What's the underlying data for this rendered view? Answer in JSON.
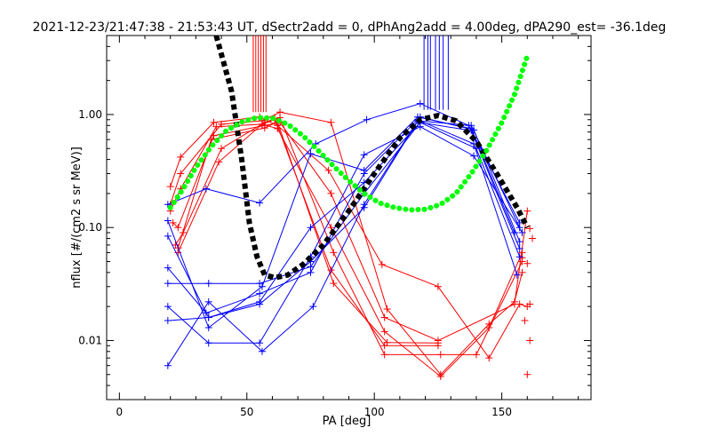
{
  "chart_data": {
    "type": "scatter",
    "title": "2021-12-23/21:47:38 - 21:53:43 UT, dSectr2add = 0, dPhAng2add = 4.00deg, dPA290_est= -36.1deg",
    "xlabel": "PA [deg]",
    "ylabel": "nflux [#/(cm2 s sr MeV)]",
    "xlim": [
      -5,
      185
    ],
    "ylim": [
      0.003,
      5
    ],
    "y_scale": "log",
    "grid": false,
    "x_ticks": [
      {
        "value": 0,
        "label": "0"
      },
      {
        "value": 50,
        "label": "50"
      },
      {
        "value": 100,
        "label": "100"
      },
      {
        "value": 150,
        "label": "150"
      }
    ],
    "y_ticks": [
      {
        "value": 0.01,
        "label": "0.01"
      },
      {
        "value": 0.1,
        "label": "0.10"
      },
      {
        "value": 1,
        "label": "1.00"
      }
    ],
    "colors": {
      "red": "#ff0000",
      "blue": "#0000ff",
      "black": "#000000",
      "green": "#00ff00"
    },
    "vlines": {
      "red": {
        "x": [
          52.5,
          53.5,
          54.5,
          55.5,
          56.5,
          57.5
        ],
        "y0": 1.05,
        "y1": 5
      },
      "blue": {
        "x": [
          119.5,
          121,
          122,
          124,
          125.5,
          127,
          129
        ],
        "y0": 1.1,
        "y1": 5
      }
    },
    "series": [
      {
        "color": "red",
        "lines": [
          [
            [
              20,
              0.23
            ],
            [
              24,
              0.42
            ],
            [
              37,
              0.85
            ],
            [
              55,
              0.95
            ],
            [
              62,
              0.8
            ],
            [
              82,
              0.32
            ],
            [
              103,
              0.047
            ],
            [
              125,
              0.03
            ],
            [
              145,
              0.007
            ],
            [
              157,
              0.021
            ],
            [
              160,
              0.02
            ]
          ],
          [
            [
              20,
              0.16
            ],
            [
              24,
              0.3
            ],
            [
              40,
              0.82
            ],
            [
              56,
              0.88
            ],
            [
              63,
              1.05
            ],
            [
              83,
              0.85
            ],
            [
              105,
              0.019
            ],
            [
              126,
              0.005
            ],
            [
              145,
              0.014
            ],
            [
              155,
              0.022
            ],
            [
              158,
              0.04
            ]
          ],
          [
            [
              20,
              0.14
            ],
            [
              24,
              0.22
            ],
            [
              38,
              0.78
            ],
            [
              56,
              0.82
            ],
            [
              62,
              0.75
            ],
            [
              83,
              0.1
            ],
            [
              104,
              0.012
            ],
            [
              126,
              0.0048
            ],
            [
              145,
              0.013
            ],
            [
              158,
              0.06
            ]
          ],
          [
            [
              21,
              0.11
            ],
            [
              23,
              0.1
            ],
            [
              37,
              0.65
            ],
            [
              57,
              0.8
            ],
            [
              63,
              0.85
            ],
            [
              83,
              0.2
            ],
            [
              104,
              0.016
            ],
            [
              125,
              0.01
            ],
            [
              155,
              0.021
            ],
            [
              160,
              0.14
            ]
          ],
          [
            [
              22,
              0.07
            ],
            [
              25,
              0.09
            ],
            [
              40,
              0.5
            ],
            [
              57,
              0.85
            ],
            [
              61,
              0.92
            ],
            [
              83,
              0.042
            ],
            [
              104,
              0.009
            ],
            [
              125,
              0.009
            ]
          ],
          [
            [
              23,
              0.066
            ],
            [
              36,
              0.6
            ],
            [
              57,
              0.76
            ],
            [
              62,
              0.86
            ],
            [
              84,
              0.032
            ],
            [
              105,
              0.0096
            ],
            [
              125,
              0.0095
            ]
          ],
          [
            [
              23,
              0.06
            ],
            [
              39,
              0.38
            ],
            [
              56,
              0.82
            ],
            [
              63,
              0.94
            ],
            [
              84,
              0.06
            ],
            [
              104,
              0.0075
            ],
            [
              126,
              0.0075
            ],
            [
              140,
              0.0075
            ],
            [
              158,
              0.05
            ]
          ]
        ]
      },
      {
        "color": "red",
        "markers_only": true,
        "points": [
          [
            158,
            0.054
          ],
          [
            160,
            0.048
          ],
          [
            161,
            0.098
          ],
          [
            161,
            0.021
          ],
          [
            159,
            0.015
          ],
          [
            161,
            0.01
          ],
          [
            160,
            0.005
          ],
          [
            162,
            0.08
          ]
        ]
      },
      {
        "color": "blue",
        "lines": [
          [
            [
              19,
              0.16
            ],
            [
              34,
              0.22
            ],
            [
              55,
              0.165
            ],
            [
              77,
              0.55
            ],
            [
              97,
              0.9
            ],
            [
              118,
              1.25
            ],
            [
              137,
              0.8
            ],
            [
              157,
              0.11
            ]
          ],
          [
            [
              19,
              0.115
            ],
            [
              35,
              0.013
            ],
            [
              56,
              0.03
            ],
            [
              75,
              0.45
            ],
            [
              96,
              0.32
            ],
            [
              117,
              0.95
            ],
            [
              138,
              0.75
            ],
            [
              155,
              0.09
            ]
          ],
          [
            [
              19,
              0.084
            ],
            [
              35,
              0.016
            ],
            [
              55,
              0.022
            ],
            [
              75,
              0.1
            ],
            [
              96,
              0.25
            ],
            [
              118,
              0.85
            ],
            [
              138,
              0.72
            ],
            [
              157,
              0.065
            ]
          ],
          [
            [
              19,
              0.044
            ],
            [
              34,
              0.0175
            ],
            [
              55,
              0.026
            ],
            [
              75,
              0.04
            ],
            [
              96,
              0.3
            ],
            [
              117,
              0.9
            ],
            [
              139,
              0.55
            ],
            [
              156,
              0.038
            ]
          ],
          [
            [
              19,
              0.032
            ],
            [
              35,
              0.032
            ],
            [
              55,
              0.032
            ],
            [
              75,
              0.045
            ],
            [
              96,
              0.2
            ],
            [
              118,
              0.85
            ],
            [
              140,
              0.5
            ],
            [
              157,
              0.055
            ]
          ],
          [
            [
              19,
              0.02
            ],
            [
              35,
              0.0095
            ],
            [
              55,
              0.0095
            ],
            [
              75,
              0.055
            ],
            [
              96,
              0.44
            ],
            [
              118,
              0.78
            ],
            [
              139,
              0.43
            ],
            [
              158,
              0.09
            ]
          ],
          [
            [
              19,
              0.015
            ],
            [
              35,
              0.016
            ],
            [
              55,
              0.021
            ],
            [
              75,
              0.05
            ],
            [
              96,
              0.15
            ],
            [
              118,
              0.95
            ],
            [
              139,
              0.73
            ],
            [
              157,
              0.075
            ]
          ],
          [
            [
              19,
              0.006
            ],
            [
              35,
              0.022
            ],
            [
              56,
              0.008
            ],
            [
              76,
              0.02
            ],
            [
              96,
              0.16
            ],
            [
              117,
              0.88
            ],
            [
              138,
              0.8
            ],
            [
              157,
              0.1
            ]
          ]
        ]
      },
      {
        "color": "black",
        "dashed": true,
        "curve": [
          [
            38,
            5
          ],
          [
            44,
            1.6
          ],
          [
            48,
            0.4
          ],
          [
            51,
            0.11
          ],
          [
            54,
            0.055
          ],
          [
            57,
            0.038
          ],
          [
            61,
            0.036
          ],
          [
            66,
            0.038
          ],
          [
            72,
            0.047
          ],
          [
            80,
            0.07
          ],
          [
            90,
            0.14
          ],
          [
            100,
            0.3
          ],
          [
            110,
            0.62
          ],
          [
            118,
            0.9
          ],
          [
            125,
            0.98
          ],
          [
            132,
            0.88
          ],
          [
            140,
            0.58
          ],
          [
            148,
            0.3
          ],
          [
            156,
            0.15
          ],
          [
            160,
            0.1
          ]
        ]
      },
      {
        "color": "green",
        "dotted": true,
        "curve": [
          [
            20,
            0.15
          ],
          [
            25,
            0.22
          ],
          [
            30,
            0.34
          ],
          [
            36,
            0.52
          ],
          [
            42,
            0.72
          ],
          [
            48,
            0.86
          ],
          [
            54,
            0.94
          ],
          [
            60,
            0.93
          ],
          [
            66,
            0.82
          ],
          [
            72,
            0.65
          ],
          [
            78,
            0.48
          ],
          [
            84,
            0.35
          ],
          [
            90,
            0.26
          ],
          [
            96,
            0.2
          ],
          [
            102,
            0.165
          ],
          [
            108,
            0.15
          ],
          [
            114,
            0.143
          ],
          [
            120,
            0.145
          ],
          [
            126,
            0.16
          ],
          [
            132,
            0.2
          ],
          [
            138,
            0.3
          ],
          [
            144,
            0.48
          ],
          [
            150,
            0.85
          ],
          [
            155,
            1.5
          ],
          [
            160,
            3.3
          ]
        ]
      }
    ]
  }
}
